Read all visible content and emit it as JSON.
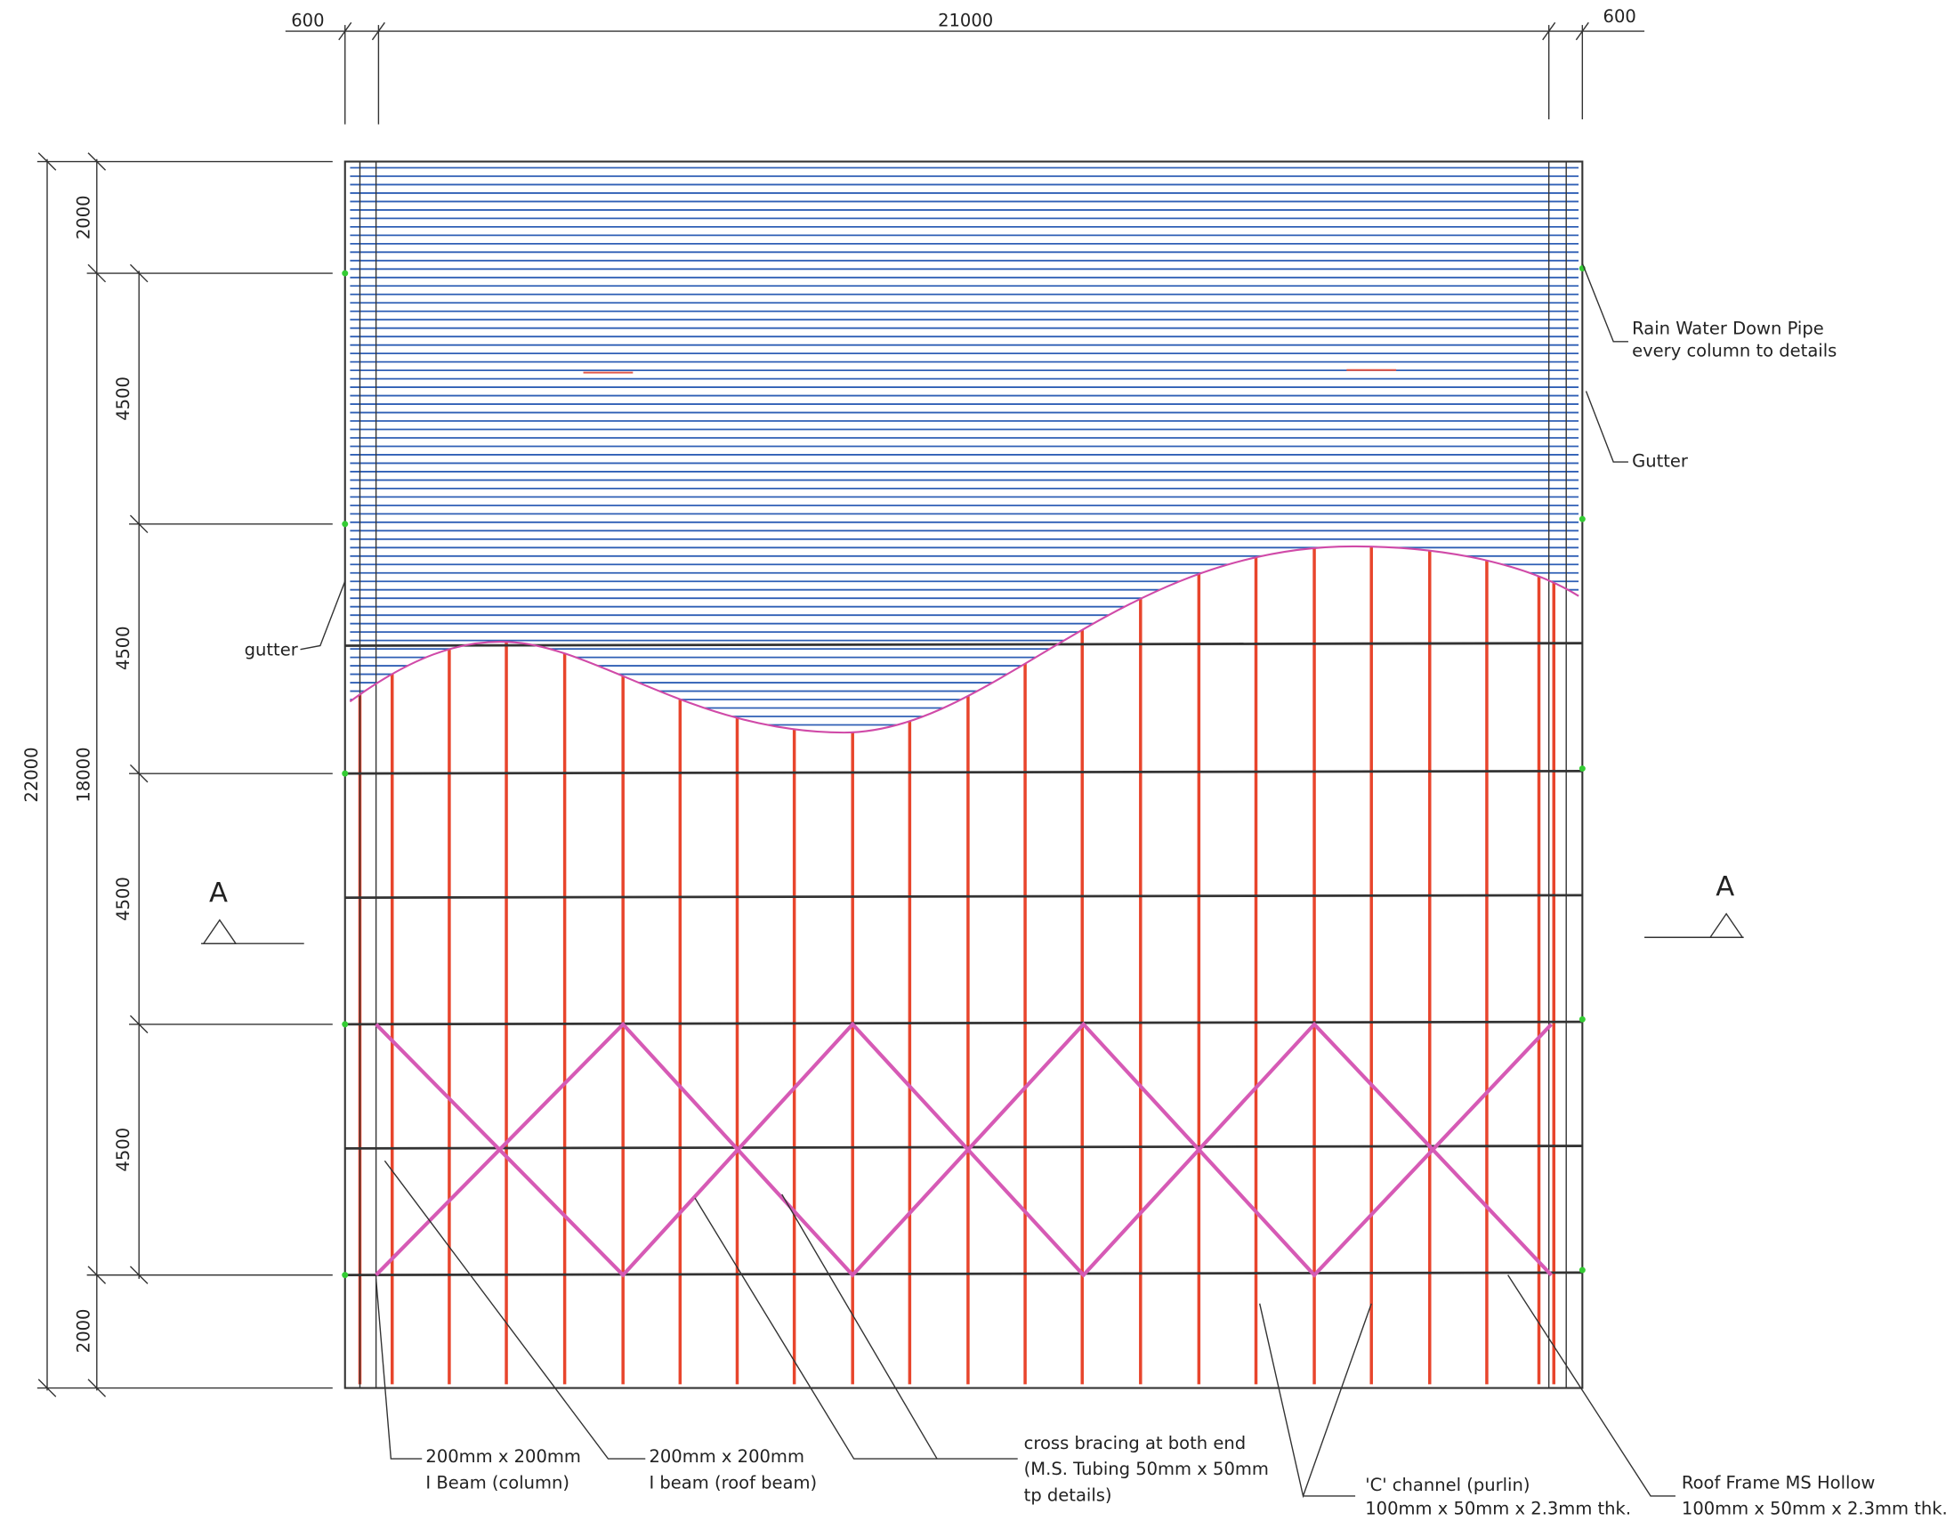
{
  "dimensions": {
    "top": [
      "600",
      "21000",
      "600"
    ],
    "overall": "22000",
    "outer": [
      "2000",
      "18000",
      "2000"
    ],
    "bays": [
      "4500",
      "4500",
      "4500",
      "4500"
    ]
  },
  "section_marks": [
    "A",
    "A"
  ],
  "labels": {
    "downpipe": [
      "Rain Water Down Pipe",
      "every column to details"
    ],
    "gutter_right": "Gutter",
    "gutter_left": "gutter"
  },
  "notes": {
    "column": [
      "200mm x 200mm",
      "I Beam (column)"
    ],
    "roof_beam": [
      "200mm x 200mm",
      "I beam (roof beam)"
    ],
    "bracing": [
      "cross bracing at both end",
      "(M.S. Tubing 50mm x 50mm",
      "tp details)"
    ],
    "purlin": [
      "'C' channel (purlin)",
      "100mm x 50mm x 2.3mm thk."
    ],
    "frame": [
      "Roof Frame MS Hollow",
      "100mm x 50mm x 2.3mm thk."
    ]
  }
}
